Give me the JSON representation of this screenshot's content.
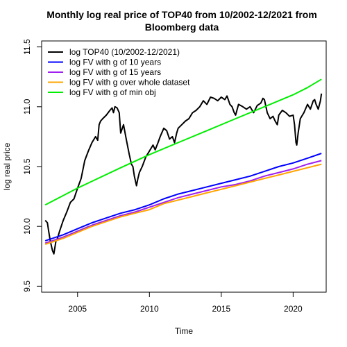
{
  "chart_data": {
    "type": "line",
    "title_lines": [
      "Monthly log real price of TOP40 from 10/2002-12/2021 from",
      "Bloomberg data"
    ],
    "xlabel": "Time",
    "ylabel": "log real price",
    "xlim": [
      2002.5,
      2022.3
    ],
    "ylim": [
      9.45,
      11.55
    ],
    "x_ticks": [
      2005,
      2010,
      2015,
      2020
    ],
    "y_ticks": [
      9.5,
      10.0,
      10.5,
      11.0,
      11.5
    ],
    "legend_position": "top-left",
    "series": [
      {
        "name": "log TOP40 (10/2002-12/2021)",
        "color": "#000000",
        "x": [
          2002.75,
          2002.9,
          2003.0,
          2003.1,
          2003.25,
          2003.35,
          2003.5,
          2003.6,
          2003.75,
          2004.0,
          2004.25,
          2004.5,
          2004.75,
          2005.0,
          2005.25,
          2005.5,
          2005.75,
          2006.0,
          2006.25,
          2006.4,
          2006.5,
          2006.6,
          2006.75,
          2007.0,
          2007.25,
          2007.4,
          2007.5,
          2007.6,
          2007.75,
          2007.9,
          2008.0,
          2008.2,
          2008.4,
          2008.6,
          2008.75,
          2008.85,
          2008.95,
          2009.1,
          2009.2,
          2009.3,
          2009.5,
          2009.75,
          2010.0,
          2010.25,
          2010.4,
          2010.6,
          2010.75,
          2011.0,
          2011.2,
          2011.4,
          2011.6,
          2011.75,
          2011.9,
          2012.0,
          2012.25,
          2012.5,
          2012.75,
          2013.0,
          2013.25,
          2013.5,
          2013.75,
          2014.0,
          2014.25,
          2014.5,
          2014.75,
          2015.0,
          2015.25,
          2015.4,
          2015.6,
          2015.75,
          2015.9,
          2016.0,
          2016.2,
          2016.5,
          2016.75,
          2017.0,
          2017.25,
          2017.5,
          2017.75,
          2017.9,
          2018.0,
          2018.2,
          2018.4,
          2018.6,
          2018.75,
          2018.9,
          2019.0,
          2019.25,
          2019.5,
          2019.75,
          2020.0,
          2020.1,
          2020.2,
          2020.25,
          2020.35,
          2020.5,
          2020.75,
          2021.0,
          2021.2,
          2021.4,
          2021.5,
          2021.6,
          2021.75,
          2021.9,
          2021.97
        ],
        "y": [
          10.05,
          10.03,
          9.95,
          9.88,
          9.8,
          9.77,
          9.88,
          9.9,
          9.96,
          10.05,
          10.12,
          10.2,
          10.23,
          10.32,
          10.4,
          10.55,
          10.63,
          10.7,
          10.75,
          10.72,
          10.85,
          10.88,
          10.9,
          10.93,
          10.97,
          10.99,
          10.95,
          11.0,
          10.99,
          10.95,
          10.78,
          10.85,
          10.72,
          10.6,
          10.52,
          10.5,
          10.42,
          10.34,
          10.4,
          10.45,
          10.5,
          10.58,
          10.63,
          10.68,
          10.64,
          10.7,
          10.75,
          10.82,
          10.8,
          10.73,
          10.75,
          10.7,
          10.78,
          10.82,
          10.85,
          10.88,
          10.9,
          10.95,
          10.97,
          11.0,
          11.05,
          11.02,
          11.08,
          11.07,
          11.05,
          11.08,
          11.06,
          11.09,
          11.02,
          11.0,
          10.95,
          10.93,
          11.02,
          11.0,
          10.98,
          11.0,
          10.95,
          11.01,
          11.03,
          11.07,
          11.06,
          10.95,
          10.9,
          10.92,
          10.88,
          10.85,
          10.93,
          10.97,
          10.95,
          10.92,
          10.93,
          10.85,
          10.7,
          10.68,
          10.78,
          10.9,
          10.95,
          11.02,
          10.98,
          11.05,
          11.06,
          11.02,
          10.98,
          11.05,
          11.11
        ]
      },
      {
        "name": "log FV with g of 10 years",
        "color": "#0000ff",
        "x": [
          2002.75,
          2004,
          2005,
          2006,
          2007,
          2008,
          2009,
          2010,
          2011,
          2012,
          2013,
          2014,
          2015,
          2016,
          2017,
          2018,
          2019,
          2020,
          2021,
          2021.97
        ],
        "y": [
          9.88,
          9.93,
          9.98,
          10.03,
          10.07,
          10.11,
          10.14,
          10.18,
          10.23,
          10.27,
          10.3,
          10.33,
          10.36,
          10.39,
          10.42,
          10.46,
          10.5,
          10.53,
          10.57,
          10.61
        ]
      },
      {
        "name": "log FV with g of 15 years",
        "color": "#a020f0",
        "x": [
          2002.75,
          2004,
          2005,
          2006,
          2007,
          2008,
          2009,
          2010,
          2011,
          2012,
          2013,
          2014,
          2015,
          2016,
          2017,
          2018,
          2019,
          2020,
          2021,
          2021.97
        ],
        "y": [
          9.86,
          9.91,
          9.96,
          10.01,
          10.05,
          10.09,
          10.12,
          10.16,
          10.2,
          10.24,
          10.27,
          10.3,
          10.33,
          10.35,
          10.38,
          10.42,
          10.45,
          10.48,
          10.52,
          10.55
        ]
      },
      {
        "name": "log FV with g over whole dataset",
        "color": "#ffa500",
        "x": [
          2002.75,
          2004,
          2005,
          2006,
          2007,
          2008,
          2009,
          2010,
          2011,
          2012,
          2013,
          2014,
          2015,
          2016,
          2017,
          2018,
          2019,
          2020,
          2021,
          2021.97
        ],
        "y": [
          9.85,
          9.9,
          9.95,
          10.0,
          10.04,
          10.08,
          10.11,
          10.14,
          10.19,
          10.22,
          10.25,
          10.28,
          10.31,
          10.34,
          10.37,
          10.4,
          10.43,
          10.46,
          10.49,
          10.52
        ]
      },
      {
        "name": "log FV with g of min obj",
        "color": "#00ee00",
        "x": [
          2002.75,
          2005,
          2008,
          2010,
          2012,
          2014,
          2016,
          2018,
          2020,
          2021,
          2021.97
        ],
        "y": [
          10.18,
          10.32,
          10.49,
          10.6,
          10.7,
          10.8,
          10.9,
          11.0,
          11.1,
          11.16,
          11.23
        ]
      }
    ]
  }
}
